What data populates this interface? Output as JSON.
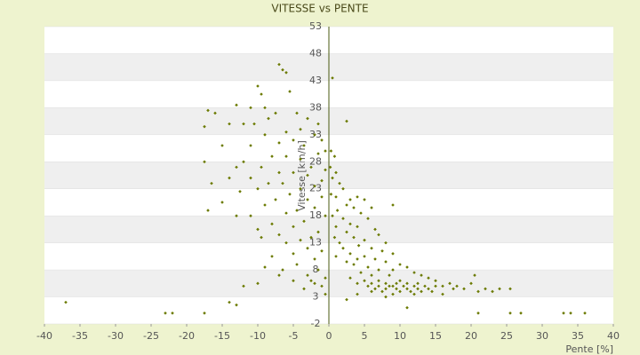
{
  "chart_data": {
    "type": "scatter",
    "title": "VITESSE vs PENTE",
    "x_label": "Pente [%]",
    "y_label": "Vitesse [km/h]",
    "color": "#6b7a00",
    "band_color": "#efefef",
    "xlim": [
      -40,
      40
    ],
    "xticks": [
      -40,
      -35,
      -30,
      -25,
      -20,
      -15,
      -10,
      -5,
      0,
      5,
      10,
      15,
      20,
      25,
      30,
      35,
      40
    ],
    "ylim": [
      -2,
      53
    ],
    "yticks": [
      -2,
      3,
      8,
      13,
      18,
      23,
      28,
      33,
      38,
      43,
      48,
      53
    ],
    "x": [
      -7,
      -6.5,
      -6,
      -10,
      -9.5,
      -5.5,
      -9,
      -11,
      -13,
      -17,
      -16,
      -7.5,
      -4.5,
      -3,
      -1.5,
      -8.5,
      -10.5,
      -12,
      -14,
      -17.5,
      -4,
      -6,
      -9,
      -2,
      -1,
      -5,
      -7,
      -11,
      -15,
      -3.5,
      -0.5,
      -1.5,
      -6,
      -8,
      -4,
      -12,
      -17.5,
      -13,
      -9.5,
      -2.5,
      -0.5,
      -5,
      -7,
      -3,
      -11,
      -14,
      -1,
      -6.5,
      -8.5,
      -16.5,
      -2,
      -4,
      -10,
      -12.5,
      -5.5,
      -1,
      -7.5,
      -3,
      -9,
      -15,
      -17,
      -2,
      -4.5,
      -6,
      -11,
      -13,
      -0.5,
      -3.5,
      -8,
      -5,
      -10,
      -1.5,
      -7,
      -2.5,
      -9.5,
      -4,
      -6,
      -3,
      -1,
      -5,
      -8,
      -2,
      -4.5,
      -9,
      -6.5,
      -1.5,
      -3,
      -0.5,
      -5,
      -2,
      -1,
      -3.5,
      -0.5,
      -2.5,
      -7,
      -12,
      -10,
      0.5,
      2.5,
      0.3,
      0.8,
      0.2,
      1,
      0.5,
      1.5,
      2,
      0.3,
      1,
      3,
      4,
      5,
      2.5,
      3.5,
      6,
      9,
      1.2,
      4.5,
      0.5,
      2,
      5.5,
      3,
      1,
      4,
      6.5,
      2.5,
      7,
      0.8,
      3.5,
      5,
      8,
      1.5,
      4.2,
      6,
      2,
      7.5,
      3,
      9,
      1,
      5,
      4,
      6.5,
      2.5,
      8,
      10,
      3.5,
      5.5,
      11,
      7,
      4.5,
      9,
      12,
      6,
      8.5,
      13,
      14,
      3,
      5,
      7,
      10,
      15,
      4,
      6,
      8,
      9.5,
      11,
      12.5,
      17,
      20,
      5.5,
      7,
      8.5,
      9,
      10.5,
      12,
      13.5,
      15,
      16,
      18,
      6.5,
      8,
      9.5,
      11,
      12.5,
      14,
      17.5,
      19,
      22,
      24,
      25.5,
      7.5,
      10,
      11.5,
      13,
      14.5,
      21,
      23,
      6,
      9,
      12,
      4,
      8,
      2.5,
      20.5,
      11,
      16,
      -37,
      -23,
      -22,
      -17.5,
      -14,
      -13,
      21,
      25.5,
      27,
      33,
      34,
      36
    ],
    "values": [
      46,
      45,
      44.5,
      42,
      40.5,
      41,
      38,
      38,
      38.5,
      37.5,
      37,
      37,
      37,
      36,
      35,
      36,
      35,
      35,
      35,
      34.5,
      34,
      33.5,
      33,
      33,
      32,
      32,
      31.5,
      31,
      31,
      31,
      30,
      29.5,
      29,
      29,
      28.5,
      28,
      28,
      27,
      27,
      27,
      26.5,
      26,
      26,
      25.5,
      25,
      25,
      24.5,
      24,
      24,
      24,
      23.5,
      23,
      23,
      22.5,
      22,
      21.5,
      21,
      21,
      20,
      20.5,
      19,
      19.5,
      19,
      18.5,
      18,
      18,
      18,
      17,
      16.5,
      16,
      15.5,
      15,
      14.5,
      14,
      14,
      13.5,
      13,
      12,
      11.5,
      11,
      10.5,
      10,
      9,
      8.5,
      8,
      8,
      7,
      6.5,
      6,
      5.5,
      5,
      4.5,
      3.5,
      6,
      7,
      5,
      5.5,
      43.5,
      35.5,
      30,
      29,
      27,
      26,
      25,
      24,
      23,
      22,
      21.5,
      21,
      21.5,
      21,
      20,
      19.5,
      19.5,
      20,
      19,
      18.5,
      18,
      17.5,
      17.5,
      16.5,
      16,
      16,
      15.5,
      15,
      14.5,
      14,
      14,
      13.5,
      13,
      13,
      12.5,
      12,
      12,
      11.5,
      11,
      11,
      10.5,
      10.5,
      10,
      10,
      9.5,
      9.5,
      9,
      9,
      8.5,
      8.5,
      8,
      7.5,
      8,
      7.5,
      7,
      7,
      7,
      6.5,
      6.5,
      6,
      6,
      6,
      6,
      5.5,
      5.5,
      5.5,
      5.5,
      5.5,
      5.5,
      5.5,
      5.5,
      5,
      5,
      5,
      5,
      5,
      5,
      5,
      5,
      5,
      5,
      4.5,
      4.5,
      4.5,
      4.5,
      4.5,
      4.5,
      4.5,
      4.5,
      4.5,
      4.5,
      4.5,
      4,
      4,
      4,
      4,
      4,
      4,
      4,
      4,
      3.5,
      3.5,
      3.5,
      3,
      2.5,
      7,
      1,
      3.5,
      2,
      0,
      0,
      0,
      2,
      1.5,
      0,
      0,
      0,
      0,
      0,
      0
    ]
  }
}
